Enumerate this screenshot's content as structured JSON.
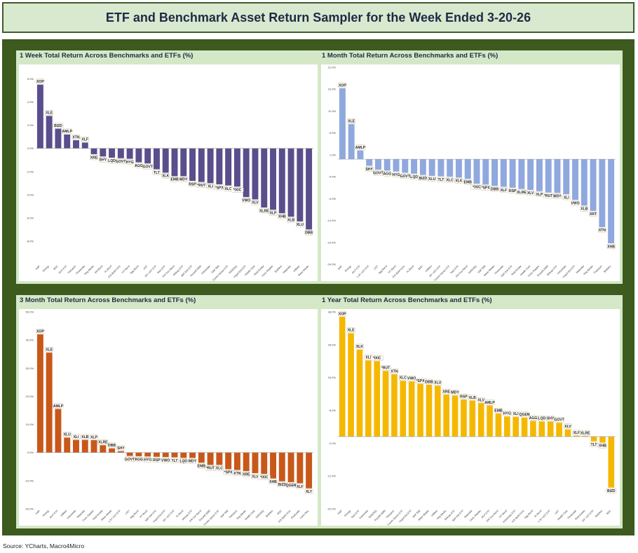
{
  "header": {
    "title": "ETF and Benchmark Asset Return Sampler for the Week Ended 3-20-26"
  },
  "source": "Source: YCharts, Macro4Micro",
  "chart_data": [
    {
      "type": "bar",
      "title": "1 Week Total Return Across Benchmarks and ETFs (%)",
      "color": "#5a4e8c",
      "ylim": [
        -10,
        7
      ],
      "yticks": [
        6,
        4,
        2,
        0,
        -2,
        -4,
        -6,
        -8
      ],
      "yticklabels": [
        "6.0%",
        "4.0%",
        "2.0%",
        "0.0%",
        "-2.0%",
        "-4.0%",
        "-6.0%",
        "-8.0%"
      ],
      "labels": [
        "XOP",
        "XLE",
        "BIZD",
        "AMLP",
        "XTN",
        "XLF",
        "XRE",
        "SHY",
        "LQD",
        "GOVT_1",
        "HYG",
        "AGG",
        "GOVT",
        "TLT",
        "XLK",
        "EMB",
        "MDY",
        "RSP",
        "*RUT",
        "XLI",
        "*SPX",
        "XLC",
        "*IXIC",
        "VWO",
        "XLV",
        "XLRE",
        "XLP",
        "XHB",
        "XLB",
        "XLU",
        "DBB"
      ],
      "categories": [
        "E&P",
        "Energy",
        "BDC",
        "MLP ETF",
        "Transport",
        "Financials",
        "Reg Banks",
        "EM Bond",
        "IG Bond",
        "ICE-BofA GOV",
        "HY Bond",
        "Agg Bond",
        "UST",
        "20+ UST ETF",
        "Tech ETF",
        "EM Gov Bond",
        "Midcap ETF",
        "S&P EW ETF",
        "Russell 2000",
        "Industrials",
        "S&P 500",
        "Comm Sector ETF",
        "NASDAQ",
        "Vngrd EM ETF",
        "Health Care",
        "Real Estate",
        "Cons Staples",
        "Builders",
        "Materials",
        "Utilities",
        "Base Metals"
      ],
      "values": [
        5.5,
        2.8,
        1.7,
        1.2,
        0.7,
        0.5,
        -0.5,
        -0.7,
        -0.8,
        -0.85,
        -0.9,
        -1.2,
        -1.3,
        -1.8,
        -2.1,
        -2.4,
        -2.4,
        -2.8,
        -2.9,
        -3.0,
        -3.1,
        -3.2,
        -3.3,
        -4.2,
        -4.4,
        -5.1,
        -5.3,
        -5.6,
        -5.9,
        -6.3,
        -7.0
      ]
    },
    {
      "type": "bar",
      "title": "1 Month Total Return Across Benchmarks and ETFs (%)",
      "color": "#8fa8de",
      "ylim": [
        -24,
        21
      ],
      "yticks": [
        21,
        16,
        11,
        6,
        1,
        -4,
        -9,
        -14,
        -19,
        -24
      ],
      "yticklabels": [
        "21.0%",
        "16.0%",
        "11.0%",
        "6.0%",
        "1.0%",
        "-4.0%",
        "-9.0%",
        "-14.0%",
        "-19.0%",
        "-24.0%"
      ],
      "labels": [
        "XOP",
        "XLE",
        "AMLP",
        "SHY",
        "GOVT",
        "AGG",
        "HYG",
        "GOVT_1",
        "LQD",
        "BIZD",
        "XLU",
        "TLT",
        "XLC",
        "XLK",
        "EMB",
        "*IXIC",
        "*SPX",
        "DBB",
        "XLF",
        "RSP",
        "XLRE",
        "XLV",
        "XLP",
        "*RUT",
        "MDY",
        "XLI",
        "VWO",
        "XLB",
        "XRT",
        "XTN",
        "XHB"
      ],
      "categories": [
        "E&P",
        "Energy",
        "MLP ETF",
        "1-3Y UST ETF",
        "UST",
        "Agg Bond",
        "HY Bond",
        "ICE-BofA GOV",
        "IG Bond",
        "BDC",
        "Utilities",
        "20+ UST ETF",
        "Comm Sector ETF",
        "Tech ETF",
        "EM Gov Bond",
        "NASDAQ",
        "S&P 500",
        "Base Metals",
        "Financials",
        "S&P EW ETF",
        "Real Estate",
        "Health Care",
        "Cons Staples",
        "Russell 2000",
        "Midcap ETF",
        "Industrials",
        "Vngrd EM ETF",
        "Materials",
        "Reg Banks",
        "Transport",
        "Builders"
      ],
      "values": [
        16.2,
        8.0,
        2.0,
        -1.5,
        -2.4,
        -2.6,
        -2.8,
        -3.1,
        -3.3,
        -3.6,
        -3.8,
        -3.9,
        -4.0,
        -4.2,
        -4.5,
        -5.6,
        -5.8,
        -6.1,
        -6.3,
        -6.5,
        -6.8,
        -7.0,
        -7.3,
        -7.6,
        -7.7,
        -8.0,
        -9.3,
        -10.6,
        -11.8,
        -15.5,
        -19.2
      ]
    },
    {
      "type": "bar",
      "title": "3 Month Total Return Across Benchmarks and ETFs (%)",
      "color": "#c8581a",
      "ylim": [
        -20,
        50
      ],
      "yticks": [
        50,
        40,
        30,
        20,
        10,
        0,
        -10,
        -20
      ],
      "yticklabels": [
        "50.0%",
        "40.0%",
        "30.0%",
        "20.0%",
        "10.0%",
        "0.0%",
        "-10.0%",
        "-20.0%"
      ],
      "labels": [
        "XOP",
        "XLE",
        "AMLP",
        "XLU",
        "XLI",
        "XLB",
        "XLP",
        "XLRE",
        "DBB",
        "SHY",
        "GOVT",
        "AGG",
        "HYG",
        "RSP",
        "VWO",
        "TLT",
        "LQD",
        "MDY",
        "EMB",
        "*RUT",
        "XLC",
        "*SPX",
        "XTN",
        "XRE",
        "XLV",
        "*IXIC",
        "XHB",
        "BIZD",
        "QGEN",
        "XLF",
        "XLY"
      ],
      "categories": [
        "E&P",
        "Energy",
        "MLP ETF",
        "Utilities",
        "Industrials",
        "Materials",
        "Cons Staples",
        "Real Estate",
        "Base Metals",
        "1-3Y UST ETF",
        "UST",
        "Agg Bond",
        "HY Bond",
        "S&P EW ETF",
        "Vngrd EM ETF",
        "20+ UST ETF",
        "IG Bond",
        "Midcap ETF",
        "EM Gov Bond",
        "Russell 2000",
        "Comm Sector ETF",
        "S&P 500",
        "Transport",
        "Reg Banks",
        "Health Care",
        "NASDAQ",
        "Builders",
        "BDC",
        "ICE-BofA GOV",
        "Financials",
        "Cons Disc"
      ],
      "values": [
        42.0,
        35.5,
        15.5,
        5.3,
        4.5,
        4.5,
        4.4,
        2.6,
        1.5,
        0.5,
        -1.2,
        -1.3,
        -1.4,
        -1.5,
        -1.6,
        -1.7,
        -1.9,
        -1.9,
        -3.6,
        -4.4,
        -4.4,
        -5.9,
        -6.2,
        -6.6,
        -7.3,
        -7.6,
        -9.2,
        -10.2,
        -10.5,
        -10.9,
        -12.7
      ]
    },
    {
      "type": "bar",
      "title": "1 Year Total Return Across Benchmarks and ETFs (%)",
      "color": "#f5b800",
      "ylim": [
        -22,
        38
      ],
      "yticks": [
        38,
        28,
        18,
        8,
        -2,
        -12,
        -22
      ],
      "yticklabels": [
        "38.0%",
        "28.0%",
        "18.0%",
        "8.0%",
        "-2.0%",
        "-12.0%",
        "-22.0%"
      ],
      "labels": [
        "XOP",
        "XLE",
        "XLK",
        "XLI",
        "*IXIC",
        "*RUT",
        "XTN",
        "XLC",
        "VWO",
        "*SPX",
        "DBB",
        "XLU",
        "XRE",
        "MDY",
        "RSP",
        "XLB",
        "XLV",
        "AMLP",
        "EMB",
        "HYG",
        "XLI",
        "QGEN",
        "AGG",
        "LQD",
        "SHY",
        "GOVT",
        "XLV",
        "XLF",
        "XLRE",
        "TLT",
        "XHB",
        "BIZD"
      ],
      "categories": [
        "E&P",
        "Energy",
        "Tech ETF",
        "Industrials",
        "NASDAQ",
        "Russell 2000",
        "Transport",
        "Comm Sector ETF",
        "Vngrd EM ETF",
        "S&P 500",
        "Base Metals",
        "Utilities",
        "Reg Banks",
        "Midcap ETF",
        "S&P EW ETF",
        "Materials",
        "Cons Staples",
        "MLP ETF",
        "EM Gov Bond",
        "HY Bond",
        "Industrials ETF",
        "ICE-BofA GOV",
        "Agg Bond",
        "IG Bond",
        "1-3Y UST ETF",
        "UST",
        "Health Care",
        "Financials",
        "Real Estate",
        "20+ UST ETF",
        "Builders",
        "BDC"
      ],
      "values": [
        36.5,
        31.5,
        26.5,
        23.2,
        23.0,
        20.0,
        19.0,
        17.0,
        16.8,
        16.1,
        15.8,
        15.5,
        12.8,
        12.5,
        11.3,
        11.0,
        10.2,
        9.5,
        7.0,
        6.1,
        6.0,
        5.8,
        4.8,
        4.6,
        4.6,
        4.2,
        2.2,
        0.3,
        0.2,
        -1.4,
        -1.8,
        -15.5
      ]
    }
  ]
}
